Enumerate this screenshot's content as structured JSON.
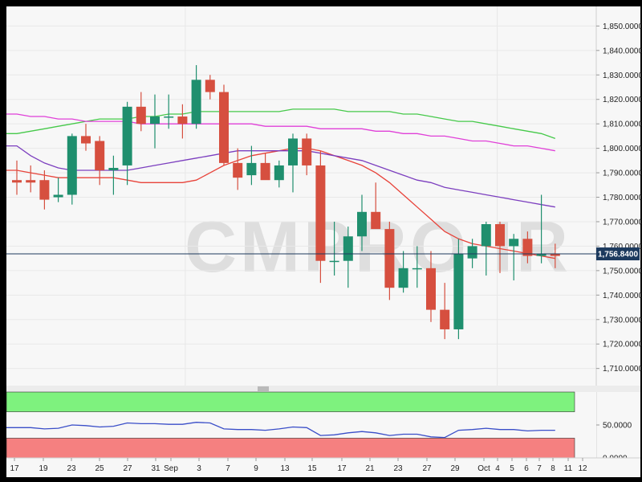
{
  "watermark": "CMPRO IR",
  "price_tag": "1,756.8400",
  "chart_data": [
    {
      "type": "candlestick",
      "title": "",
      "ylim": [
        1703,
        1858
      ],
      "y_ticks": [
        1710,
        1720,
        1730,
        1740,
        1750,
        1760,
        1770,
        1780,
        1790,
        1800,
        1810,
        1820,
        1830,
        1840,
        1850
      ],
      "y_tick_labels": [
        "1,710.0000",
        "1,720.0000",
        "1,730.0000",
        "1,740.0000",
        "1,750.0000",
        "1,760.0000",
        "1,770.0000",
        "1,780.0000",
        "1,790.0000",
        "1,800.0000",
        "1,810.0000",
        "1,820.0000",
        "1,830.0000",
        "1,840.0000",
        "1,850.0000"
      ],
      "current_price": 1756.84,
      "colors": {
        "up": "#1f8f6e",
        "down": "#d64f3f",
        "ma_red": "#e8433a",
        "ma_purple": "#7c3fbf",
        "ma_green": "#46c94a",
        "ma_magenta": "#e040d8",
        "price_line": "#1c3a5e"
      },
      "candles": [
        {
          "o": 1787,
          "h": 1795,
          "l": 1781,
          "c": 1786
        },
        {
          "o": 1787,
          "h": 1793,
          "l": 1782,
          "c": 1786
        },
        {
          "o": 1787,
          "h": 1791,
          "l": 1775,
          "c": 1779
        },
        {
          "o": 1780,
          "h": 1788,
          "l": 1778,
          "c": 1781
        },
        {
          "o": 1781,
          "h": 1806,
          "l": 1777,
          "c": 1805
        },
        {
          "o": 1805,
          "h": 1810,
          "l": 1799,
          "c": 1802
        },
        {
          "o": 1803,
          "h": 1805,
          "l": 1785,
          "c": 1791
        },
        {
          "o": 1791,
          "h": 1797,
          "l": 1781,
          "c": 1792
        },
        {
          "o": 1793,
          "h": 1819,
          "l": 1785,
          "c": 1817
        },
        {
          "o": 1817,
          "h": 1823,
          "l": 1807,
          "c": 1810
        },
        {
          "o": 1810,
          "h": 1822,
          "l": 1800,
          "c": 1813
        },
        {
          "o": 1813,
          "h": 1822,
          "l": 1808,
          "c": 1813
        },
        {
          "o": 1813,
          "h": 1818,
          "l": 1804,
          "c": 1810
        },
        {
          "o": 1810,
          "h": 1834,
          "l": 1808,
          "c": 1828
        },
        {
          "o": 1828,
          "h": 1830,
          "l": 1820,
          "c": 1823
        },
        {
          "o": 1823,
          "h": 1826,
          "l": 1793,
          "c": 1794
        },
        {
          "o": 1794,
          "h": 1800,
          "l": 1783,
          "c": 1788
        },
        {
          "o": 1789,
          "h": 1801,
          "l": 1785,
          "c": 1794
        },
        {
          "o": 1794,
          "h": 1798,
          "l": 1788,
          "c": 1787
        },
        {
          "o": 1787,
          "h": 1795,
          "l": 1784,
          "c": 1793
        },
        {
          "o": 1793,
          "h": 1806,
          "l": 1782,
          "c": 1804
        },
        {
          "o": 1804,
          "h": 1806,
          "l": 1789,
          "c": 1793
        },
        {
          "o": 1793,
          "h": 1799,
          "l": 1745,
          "c": 1754
        },
        {
          "o": 1754,
          "h": 1770,
          "l": 1748,
          "c": 1754
        },
        {
          "o": 1754,
          "h": 1768,
          "l": 1743,
          "c": 1764
        },
        {
          "o": 1764,
          "h": 1781,
          "l": 1758,
          "c": 1774
        },
        {
          "o": 1774,
          "h": 1786,
          "l": 1768,
          "c": 1767
        },
        {
          "o": 1767,
          "h": 1770,
          "l": 1738,
          "c": 1743
        },
        {
          "o": 1743,
          "h": 1758,
          "l": 1741,
          "c": 1751
        },
        {
          "o": 1751,
          "h": 1760,
          "l": 1743,
          "c": 1751
        },
        {
          "o": 1751,
          "h": 1758,
          "l": 1729,
          "c": 1734
        },
        {
          "o": 1734,
          "h": 1745,
          "l": 1722,
          "c": 1726
        },
        {
          "o": 1726,
          "h": 1763,
          "l": 1722,
          "c": 1757
        },
        {
          "o": 1755,
          "h": 1763,
          "l": 1751,
          "c": 1760
        },
        {
          "o": 1760,
          "h": 1770,
          "l": 1748,
          "c": 1769
        },
        {
          "o": 1769,
          "h": 1770,
          "l": 1749,
          "c": 1760
        },
        {
          "o": 1760,
          "h": 1765,
          "l": 1746,
          "c": 1763
        },
        {
          "o": 1763,
          "h": 1766,
          "l": 1753,
          "c": 1756
        },
        {
          "o": 1756,
          "h": 1781,
          "l": 1753,
          "c": 1757
        },
        {
          "o": 1757,
          "h": 1761,
          "l": 1751,
          "c": 1756
        }
      ],
      "moving_averages": [
        {
          "color": "#e8433a",
          "values": [
            1791,
            1790,
            1789,
            1788,
            1788,
            1788,
            1788,
            1788,
            1787,
            1786,
            1786,
            1786,
            1786,
            1787,
            1790,
            1793,
            1795,
            1797,
            1798,
            1799,
            1800,
            1800,
            1799,
            1797,
            1795,
            1793,
            1790,
            1786,
            1781,
            1776,
            1771,
            1766,
            1763,
            1761,
            1760,
            1759,
            1758,
            1757,
            1756,
            1755
          ]
        },
        {
          "color": "#7c3fbf",
          "values": [
            1801,
            1797,
            1794,
            1792,
            1791,
            1791,
            1791,
            1791,
            1791,
            1792,
            1793,
            1794,
            1795,
            1796,
            1797,
            1798,
            1799,
            1799,
            1799,
            1799,
            1799,
            1799,
            1798,
            1797,
            1796,
            1795,
            1793,
            1791,
            1789,
            1787,
            1786,
            1784,
            1783,
            1782,
            1781,
            1780,
            1779,
            1778,
            1777,
            1776
          ]
        },
        {
          "color": "#46c94a",
          "values": [
            1806,
            1807,
            1808,
            1809,
            1810,
            1811,
            1812,
            1812,
            1812,
            1813,
            1813,
            1814,
            1814,
            1815,
            1815,
            1815,
            1815,
            1815,
            1815,
            1815,
            1816,
            1816,
            1816,
            1816,
            1815,
            1815,
            1815,
            1815,
            1814,
            1814,
            1813,
            1812,
            1811,
            1811,
            1810,
            1809,
            1808,
            1807,
            1806,
            1804
          ]
        },
        {
          "color": "#e040d8",
          "values": [
            1814,
            1813,
            1813,
            1812,
            1812,
            1811,
            1811,
            1811,
            1811,
            1810,
            1810,
            1810,
            1810,
            1810,
            1810,
            1810,
            1810,
            1810,
            1809,
            1809,
            1809,
            1809,
            1808,
            1808,
            1808,
            1808,
            1807,
            1807,
            1806,
            1806,
            1805,
            1805,
            1804,
            1803,
            1803,
            1802,
            1801,
            1801,
            1800,
            1799
          ]
        }
      ]
    },
    {
      "type": "line",
      "title": "",
      "ylim": [
        0,
        100
      ],
      "y_ticks": [
        0,
        50
      ],
      "y_tick_labels": [
        "0.0000",
        "50.0000"
      ],
      "overbought_band": [
        70,
        100
      ],
      "oversold_band": [
        0,
        30
      ],
      "band_colors": {
        "overbought": "#7ef27e",
        "oversold": "#f58080"
      },
      "line_color": "#3a4ec8",
      "values": [
        46,
        46,
        44,
        45,
        50,
        49,
        47,
        48,
        53,
        52,
        52,
        51,
        51,
        54,
        53,
        44,
        43,
        43,
        42,
        44,
        47,
        46,
        34,
        35,
        38,
        40,
        38,
        34,
        36,
        36,
        32,
        31,
        42,
        43,
        45,
        43,
        43,
        41,
        42,
        42
      ]
    }
  ],
  "x_axis": {
    "labels": [
      "17",
      "19",
      "23",
      "25",
      "27",
      "31",
      "Sep",
      "3",
      "7",
      "9",
      "13",
      "15",
      "17",
      "21",
      "23",
      "27",
      "29",
      "Oct",
      "4",
      "5",
      "6",
      "7",
      "8",
      "11",
      "12"
    ]
  }
}
